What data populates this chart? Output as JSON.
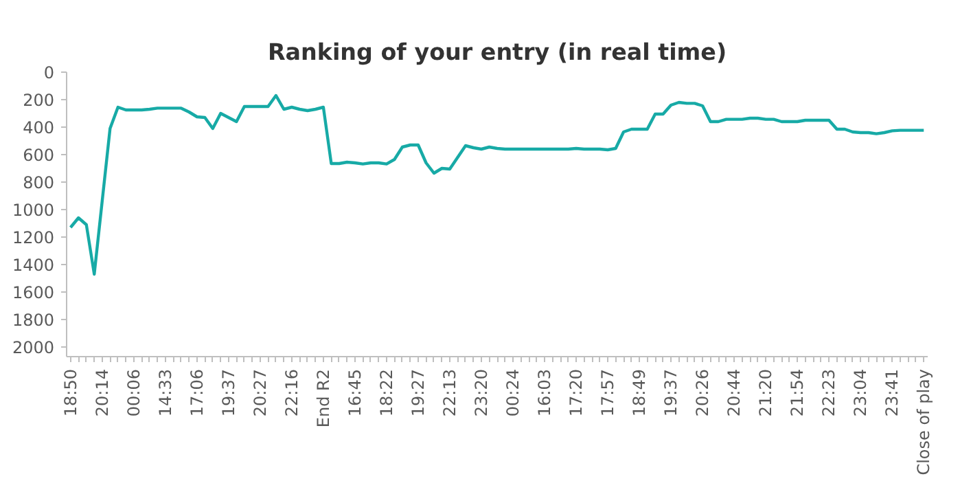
{
  "chart_data": {
    "type": "line",
    "title": "Ranking of your entry (in real time)",
    "categories": [
      "18:50",
      null,
      null,
      null,
      "20:14",
      null,
      null,
      null,
      "00:06",
      null,
      null,
      null,
      "14:33",
      null,
      null,
      null,
      "17:06",
      null,
      null,
      null,
      "19:37",
      null,
      null,
      null,
      "20:27",
      null,
      null,
      null,
      "22:16",
      null,
      null,
      null,
      "End R2",
      null,
      null,
      null,
      "16:45",
      null,
      null,
      null,
      "18:22",
      null,
      null,
      null,
      "19:27",
      null,
      null,
      null,
      "22:13",
      null,
      null,
      null,
      "23:20",
      null,
      null,
      null,
      "00:24",
      null,
      null,
      null,
      "16:03",
      null,
      null,
      null,
      "17:20",
      null,
      null,
      null,
      "17:57",
      null,
      null,
      null,
      "18:49",
      null,
      null,
      null,
      "19:37",
      null,
      null,
      null,
      "20:26",
      null,
      null,
      null,
      "20:44",
      null,
      null,
      null,
      "21:20",
      null,
      null,
      null,
      "21:54",
      null,
      null,
      null,
      "22:23",
      null,
      null,
      null,
      "23:04",
      null,
      null,
      null,
      "23:41",
      null,
      null,
      null,
      "Close of play"
    ],
    "series": [
      {
        "color": "#17aaa6",
        "values": [
          1130,
          1060,
          1110,
          1470,
          940,
          410,
          255,
          275,
          275,
          275,
          270,
          262,
          262,
          262,
          262,
          290,
          325,
          330,
          410,
          300,
          330,
          360,
          250,
          250,
          250,
          250,
          170,
          270,
          255,
          270,
          280,
          270,
          255,
          665,
          665,
          655,
          660,
          668,
          660,
          660,
          668,
          635,
          545,
          530,
          530,
          660,
          735,
          700,
          705,
          620,
          535,
          550,
          560,
          545,
          555,
          560,
          560,
          560,
          560,
          560,
          560,
          560,
          560,
          560,
          555,
          560,
          560,
          560,
          565,
          555,
          435,
          415,
          415,
          415,
          305,
          305,
          240,
          220,
          227,
          227,
          245,
          360,
          360,
          343,
          343,
          343,
          335,
          335,
          343,
          343,
          360,
          360,
          360,
          350,
          350,
          350,
          350,
          415,
          415,
          435,
          440,
          440,
          448,
          440,
          427,
          423,
          423,
          423,
          423
        ]
      }
    ],
    "ylim": [
      2070,
      0
    ],
    "yticks": [
      0,
      200,
      400,
      600,
      800,
      1000,
      1200,
      1400,
      1600,
      1800,
      2000
    ],
    "grid": false
  }
}
